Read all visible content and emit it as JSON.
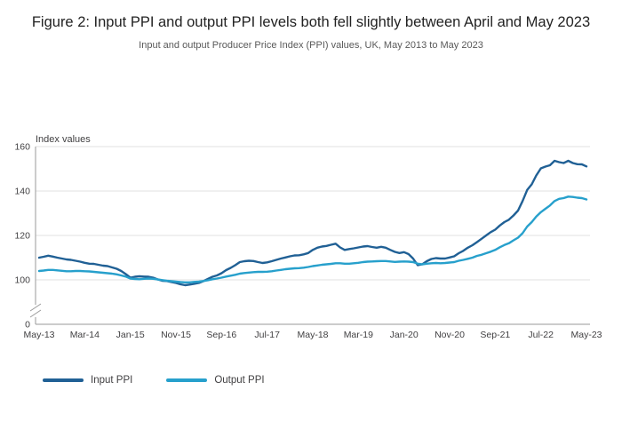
{
  "header": {
    "title": "Figure 2: Input PPI and output PPI levels both fell slightly between April and May 2023",
    "subtitle": "Input and output Producer Price Index (PPI) values, UK, May 2013 to May 2023"
  },
  "chart_data": {
    "type": "line",
    "title": "Figure 2: Input PPI and output PPI levels both fell slightly between April and May 2023",
    "subtitle": "Input and output Producer Price Index (PPI) values, UK, May 2013 to May 2023",
    "ylabel": "Index values",
    "xlabel": "",
    "grid": true,
    "legend_position": "bottom-left",
    "y_ticks": [
      160,
      140,
      120,
      100,
      0
    ],
    "y_axis_break_between": [
      0,
      100
    ],
    "ylim": [
      0,
      160
    ],
    "x_unit": "month",
    "x_range": [
      "May-2013",
      "May-2023"
    ],
    "x_tick_labels": [
      "May-13",
      "Mar-14",
      "Jan-15",
      "Nov-15",
      "Sep-16",
      "Jul-17",
      "May-18",
      "Mar-19",
      "Jan-20",
      "Nov-20",
      "Sep-21",
      "Jul-22",
      "May-23"
    ],
    "x_tick_every_n_months": 10,
    "series": [
      {
        "name": "Input PPI",
        "color": "#206095",
        "values": [
          110.0,
          110.4,
          110.9,
          110.5,
          110.0,
          109.6,
          109.2,
          109.0,
          108.6,
          108.2,
          107.7,
          107.3,
          107.2,
          106.8,
          106.4,
          106.2,
          105.6,
          105.0,
          104.0,
          102.6,
          101.0,
          101.4,
          101.6,
          101.5,
          101.4,
          101.0,
          100.2,
          99.6,
          99.5,
          99.0,
          98.6,
          98.0,
          97.6,
          97.9,
          98.2,
          98.6,
          99.4,
          100.4,
          101.4,
          102.0,
          103.0,
          104.4,
          105.4,
          106.6,
          108.0,
          108.4,
          108.6,
          108.5,
          108.0,
          107.6,
          107.9,
          108.4,
          109.0,
          109.6,
          110.1,
          110.6,
          111.0,
          111.1,
          111.5,
          112.1,
          113.5,
          114.5,
          115.0,
          115.3,
          115.8,
          116.3,
          114.6,
          113.5,
          113.9,
          114.2,
          114.6,
          115.0,
          115.2,
          114.8,
          114.5,
          114.9,
          114.5,
          113.5,
          112.6,
          112.1,
          112.5,
          111.6,
          109.6,
          106.6,
          107.0,
          108.4,
          109.4,
          109.8,
          109.6,
          109.6,
          110.1,
          110.6,
          112.0,
          113.1,
          114.5,
          115.6,
          117.0,
          118.5,
          120.0,
          121.5,
          122.6,
          124.5,
          126.0,
          127.1,
          129.0,
          131.2,
          135.5,
          140.5,
          143.0,
          147.0,
          150.2,
          151.0,
          151.6,
          153.6,
          153.0,
          152.6,
          153.6,
          152.6,
          152.1,
          152.0,
          151.1
        ]
      },
      {
        "name": "Output PPI",
        "color": "#27a0cc",
        "values": [
          104.0,
          104.2,
          104.5,
          104.5,
          104.3,
          104.1,
          103.9,
          103.9,
          104.0,
          104.0,
          103.9,
          103.8,
          103.6,
          103.4,
          103.2,
          103.0,
          102.8,
          102.5,
          102.0,
          101.5,
          100.6,
          100.4,
          100.3,
          100.5,
          100.6,
          100.5,
          100.2,
          99.9,
          99.6,
          99.4,
          99.2,
          99.0,
          98.9,
          98.9,
          99.1,
          99.2,
          99.5,
          99.8,
          100.3,
          100.6,
          101.0,
          101.5,
          101.9,
          102.3,
          102.8,
          103.1,
          103.3,
          103.5,
          103.6,
          103.6,
          103.7,
          103.9,
          104.2,
          104.5,
          104.8,
          105.0,
          105.2,
          105.3,
          105.5,
          105.8,
          106.2,
          106.5,
          106.8,
          107.0,
          107.2,
          107.5,
          107.5,
          107.3,
          107.3,
          107.5,
          107.7,
          108.0,
          108.2,
          108.3,
          108.4,
          108.5,
          108.5,
          108.3,
          108.1,
          108.2,
          108.3,
          108.2,
          108.0,
          107.3,
          107.0,
          107.3,
          107.5,
          107.6,
          107.5,
          107.6,
          107.8,
          108.0,
          108.6,
          109.0,
          109.5,
          110.0,
          110.8,
          111.3,
          112.0,
          112.7,
          113.5,
          114.7,
          115.7,
          116.5,
          117.8,
          119.0,
          121.0,
          124.0,
          126.0,
          128.5,
          130.5,
          132.0,
          133.5,
          135.5,
          136.5,
          136.8,
          137.5,
          137.3,
          137.0,
          136.8,
          136.2
        ]
      }
    ]
  },
  "legend": {
    "items": [
      {
        "label": "Input PPI"
      },
      {
        "label": "Output PPI"
      }
    ]
  },
  "colors": {
    "input_ppi": "#206095",
    "output_ppi": "#27a0cc",
    "gridline": "#e2e2e2",
    "axis": "#9a9a9a",
    "axis_text": "#414042"
  }
}
